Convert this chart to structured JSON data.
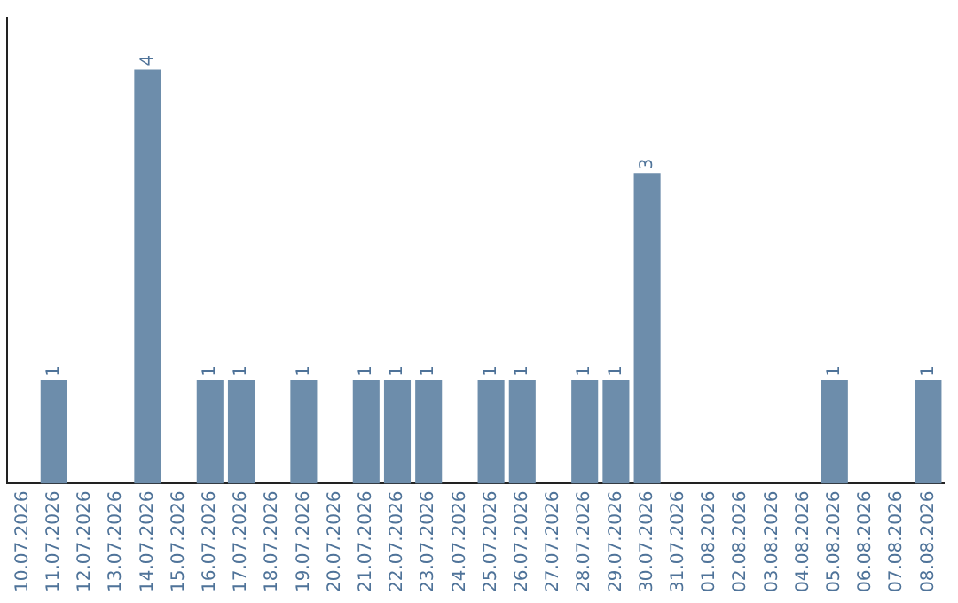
{
  "chart_data": {
    "type": "bar",
    "categories": [
      "10.07.2026",
      "11.07.2026",
      "12.07.2026",
      "13.07.2026",
      "14.07.2026",
      "15.07.2026",
      "16.07.2026",
      "17.07.2026",
      "18.07.2026",
      "19.07.2026",
      "20.07.2026",
      "21.07.2026",
      "22.07.2026",
      "23.07.2026",
      "24.07.2026",
      "25.07.2026",
      "26.07.2026",
      "27.07.2026",
      "28.07.2026",
      "29.07.2026",
      "30.07.2026",
      "31.07.2026",
      "01.08.2026",
      "02.08.2026",
      "03.08.2026",
      "04.08.2026",
      "05.08.2026",
      "06.08.2026",
      "07.08.2026",
      "08.08.2026"
    ],
    "values": [
      0,
      1,
      0,
      0,
      4,
      0,
      1,
      1,
      0,
      1,
      0,
      1,
      1,
      1,
      0,
      1,
      1,
      0,
      1,
      1,
      3,
      0,
      0,
      0,
      0,
      0,
      1,
      0,
      0,
      1
    ],
    "value_labels": [
      null,
      "1",
      null,
      null,
      "4",
      null,
      "1",
      "1",
      null,
      "1",
      null,
      "1",
      "1",
      "1",
      null,
      "1",
      "1",
      null,
      "1",
      "1",
      "3",
      null,
      null,
      null,
      null,
      null,
      "1",
      null,
      null,
      "1"
    ],
    "color": "#6d8dab",
    "tick_labels": "x",
    "grid": false,
    "legend": false
  }
}
